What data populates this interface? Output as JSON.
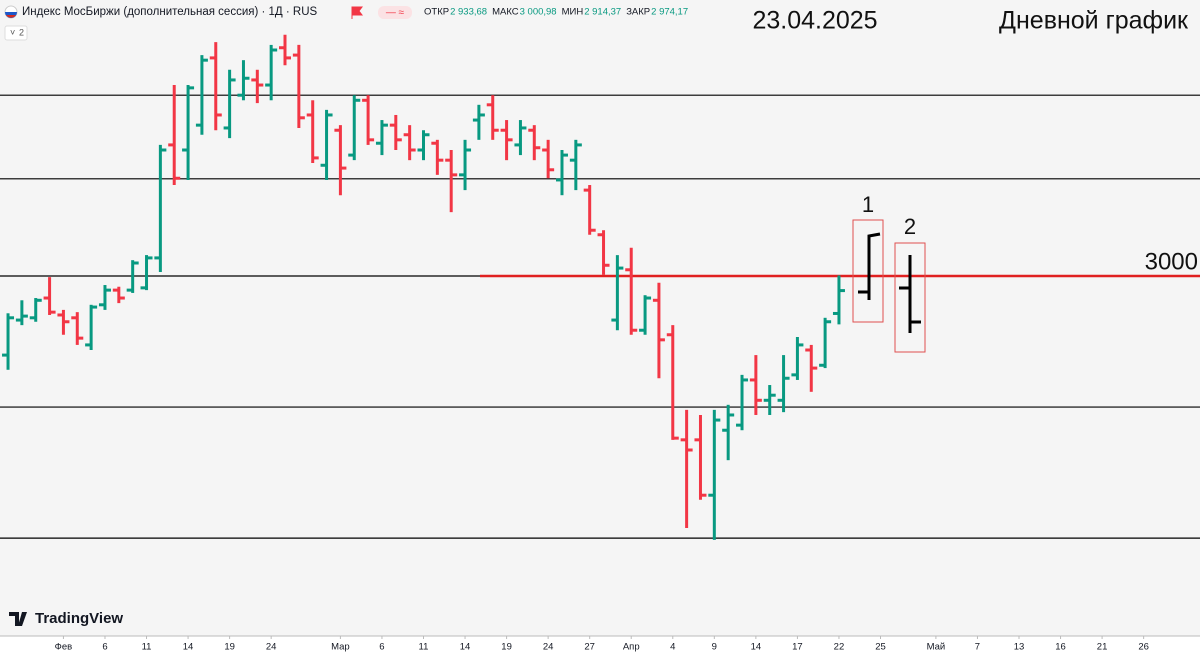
{
  "chart_data": {
    "type": "ohlc",
    "title": "Индекс МосБиржи (дополнительная сессия) · 1Д · RUS",
    "header_values": [
      {
        "label": "ОТКР",
        "value": "2 933,68"
      },
      {
        "label": "МАКС",
        "value": "3 000,98"
      },
      {
        "label": "МИН",
        "value": "2 914,37"
      },
      {
        "label": "ЗАКР",
        "value": "2 974,17"
      }
    ],
    "badge": "2",
    "date": "23.04.2025",
    "subtitle": "Дневной график",
    "watermark": "TradingView",
    "up_color": "#089981",
    "down_color": "#f23645",
    "open": [
      2860,
      2922,
      2926,
      2961,
      2931,
      2926,
      2878,
      2949,
      2975,
      2975,
      2979,
      3032,
      3232,
      3223,
      3267,
      3386,
      3262,
      3320,
      3347,
      3338,
      3404,
      3391,
      3285,
      3196,
      3258,
      3214,
      3311,
      3235,
      3267,
      3250,
      3223,
      3235,
      3205,
      3179,
      3276,
      3303,
      3258,
      3232,
      3258,
      3223,
      3170,
      3205,
      3152,
      3073,
      2922,
      3011,
      2904,
      2957,
      2896,
      2710,
      2710,
      2612,
      2727,
      2736,
      2816,
      2780,
      2780,
      2825,
      2869,
      2842,
      2933.68
    ],
    "high": [
      2934,
      2957,
      2961,
      2998,
      2940,
      2936,
      2949,
      2984,
      2981,
      3028,
      3037,
      3232,
      3338,
      3338,
      3391,
      3414,
      3365,
      3382,
      3365,
      3409,
      3427,
      3409,
      3311,
      3294,
      3267,
      3320,
      3320,
      3276,
      3285,
      3267,
      3258,
      3241,
      3223,
      3241,
      3303,
      3320,
      3276,
      3276,
      3267,
      3241,
      3223,
      3241,
      3161,
      3081,
      3037,
      3050,
      2966,
      2988,
      2913,
      2763,
      2754,
      2763,
      2772,
      2825,
      2860,
      2807,
      2860,
      2892,
      2878,
      2926,
      3000.98
    ],
    "low": [
      2834,
      2913,
      2919,
      2931,
      2896,
      2878,
      2869,
      2940,
      2952,
      2970,
      2975,
      3007,
      3161,
      3170,
      3250,
      3258,
      3244,
      3311,
      3306,
      3311,
      3373,
      3262,
      3200,
      3170,
      3143,
      3205,
      3232,
      3214,
      3223,
      3205,
      3205,
      3179,
      3113,
      3152,
      3241,
      3241,
      3205,
      3214,
      3205,
      3173,
      3143,
      3152,
      3073,
      3002,
      2904,
      2896,
      2896,
      2819,
      2710,
      2554,
      2604,
      2533,
      2674,
      2727,
      2754,
      2754,
      2759,
      2816,
      2795,
      2837,
      2914.37
    ],
    "close": [
      2926,
      2929,
      2957,
      2936,
      2919,
      2890,
      2945,
      2975,
      2961,
      3023,
      3032,
      3223,
      3173,
      3333,
      3382,
      3285,
      3347,
      3350,
      3338,
      3400,
      3386,
      3280,
      3209,
      3285,
      3191,
      3311,
      3241,
      3267,
      3241,
      3223,
      3250,
      3205,
      3179,
      3223,
      3285,
      3258,
      3241,
      3262,
      3227,
      3188,
      3214,
      3232,
      3081,
      3019,
      3014,
      2904,
      2961,
      2887,
      2713,
      2692,
      2612,
      2745,
      2754,
      2816,
      2780,
      2789,
      2819,
      2878,
      2837,
      2919,
      2974.17
    ],
    "xlim": [
      -0.58,
      86.07
    ],
    "xticks": [
      {
        "value": 4,
        "label": "Фев"
      },
      7,
      10,
      13,
      16,
      19,
      {
        "value": 24,
        "label": "Мар"
      },
      27,
      30,
      33,
      36,
      39,
      42,
      {
        "value": 45,
        "label": "Апр"
      },
      48,
      51,
      54,
      57,
      60,
      63,
      {
        "value": 67,
        "label": "Май"
      },
      70,
      73,
      76,
      79,
      82
    ],
    "xtick_texts": [
      "Фев",
      "6",
      "11",
      "14",
      "19",
      "24",
      "Мар",
      "6",
      "11",
      "14",
      "19",
      "24",
      "27",
      "Апр",
      "4",
      "9",
      "14",
      "17",
      "22",
      "25",
      "Май",
      "7",
      "13",
      "16",
      "21",
      "26"
    ],
    "ylim": [
      2362.8,
      3488.5
    ],
    "levels": [
      3320,
      3172,
      3000,
      2768,
      2536
    ],
    "level_color": "#000000",
    "resistance": {
      "value": 3000,
      "color": "#e02020"
    },
    "annotations": [
      "1",
      "2"
    ]
  }
}
